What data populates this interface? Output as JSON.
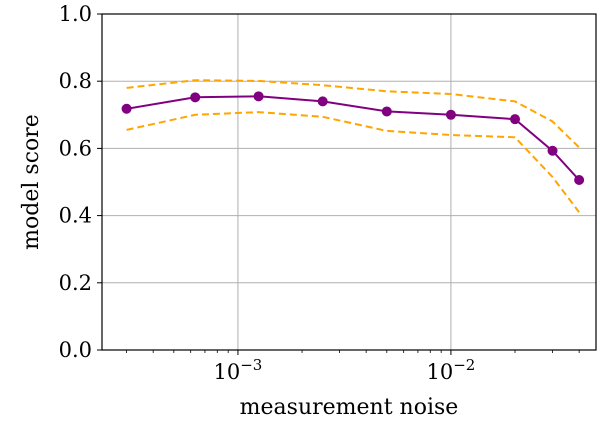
{
  "chart_data": {
    "type": "line",
    "xlabel": "measurement noise",
    "ylabel": "model score",
    "xscale": "log",
    "xlim": [
      0.00023,
      0.048
    ],
    "ylim": [
      0.0,
      1.0
    ],
    "grid": true,
    "legend": "none",
    "x_ticks": [
      {
        "value": 0.001,
        "base": "10",
        "exp": "−3"
      },
      {
        "value": 0.01,
        "base": "10",
        "exp": "−2"
      }
    ],
    "y_ticks": [
      {
        "value": 0.0,
        "label": "0.0"
      },
      {
        "value": 0.2,
        "label": "0.2"
      },
      {
        "value": 0.4,
        "label": "0.4"
      },
      {
        "value": 0.6,
        "label": "0.6"
      },
      {
        "value": 0.8,
        "label": "0.8"
      },
      {
        "value": 1.0,
        "label": "1.0"
      }
    ],
    "x": [
      0.0003,
      0.00063,
      0.00125,
      0.0025,
      0.005,
      0.01,
      0.02,
      0.03,
      0.04
    ],
    "series": [
      {
        "role": "mean",
        "style": "solid-markers",
        "color": "#800080",
        "values": [
          0.718,
          0.752,
          0.755,
          0.74,
          0.71,
          0.7,
          0.687,
          0.593,
          0.506
        ]
      },
      {
        "role": "upper-bound",
        "style": "dashed",
        "color": "#FFA500",
        "values": [
          0.78,
          0.803,
          0.801,
          0.788,
          0.77,
          0.762,
          0.74,
          0.68,
          0.603
        ]
      },
      {
        "role": "lower-bound",
        "style": "dashed",
        "color": "#FFA500",
        "values": [
          0.655,
          0.7,
          0.708,
          0.694,
          0.652,
          0.64,
          0.633,
          0.515,
          0.41
        ]
      }
    ]
  }
}
